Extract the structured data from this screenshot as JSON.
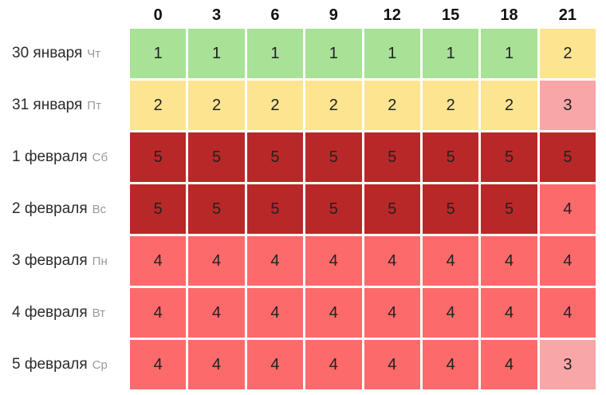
{
  "chart_data": {
    "type": "heatmap",
    "title": "",
    "xlabel": "",
    "ylabel": "",
    "x_categories": [
      "0",
      "3",
      "6",
      "9",
      "12",
      "15",
      "18",
      "21"
    ],
    "rows": [
      {
        "date": "30 января",
        "weekday": "Чт",
        "values": [
          1,
          1,
          1,
          1,
          1,
          1,
          1,
          2
        ]
      },
      {
        "date": "31 января",
        "weekday": "Пт",
        "values": [
          2,
          2,
          2,
          2,
          2,
          2,
          2,
          3
        ]
      },
      {
        "date": "1 февраля",
        "weekday": "Сб",
        "values": [
          5,
          5,
          5,
          5,
          5,
          5,
          5,
          5
        ]
      },
      {
        "date": "2 февраля",
        "weekday": "Вс",
        "values": [
          5,
          5,
          5,
          5,
          5,
          5,
          5,
          4
        ]
      },
      {
        "date": "3 февраля",
        "weekday": "Пн",
        "values": [
          4,
          4,
          4,
          4,
          4,
          4,
          4,
          4
        ]
      },
      {
        "date": "4 февраля",
        "weekday": "Вт",
        "values": [
          4,
          4,
          4,
          4,
          4,
          4,
          4,
          4
        ]
      },
      {
        "date": "5 февраля",
        "weekday": "Ср",
        "values": [
          4,
          4,
          4,
          4,
          4,
          4,
          4,
          3
        ]
      }
    ],
    "value_colors": {
      "1": "#a7e296",
      "2": "#fce490",
      "3": "#f8a6a8",
      "4": "#fd6a6c",
      "5": "#b92828"
    },
    "cell_text_color": "#222222",
    "legend_position": "none",
    "grid_gap_color": "#ffffff",
    "value_range": [
      1,
      5
    ]
  }
}
